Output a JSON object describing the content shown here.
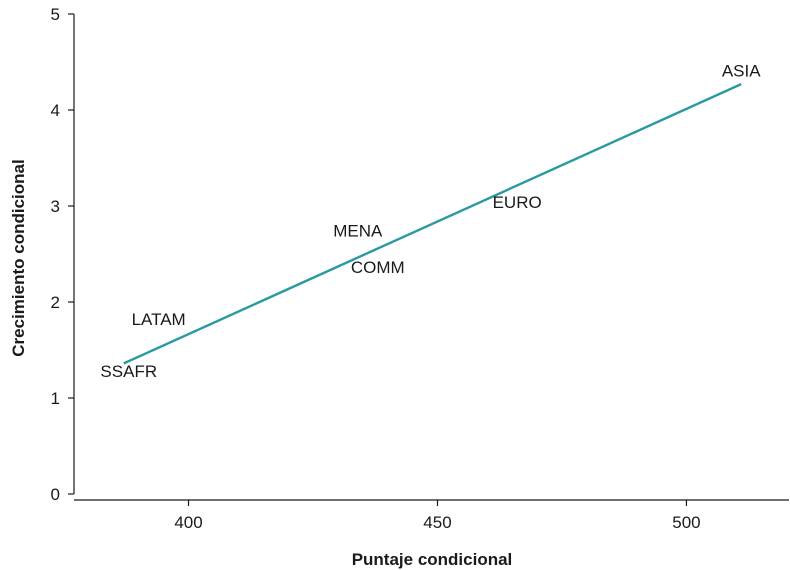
{
  "chart_data": {
    "type": "line",
    "xlabel": "Puntaje condicional",
    "ylabel": "Crecimiento condicional",
    "xlim": [
      377,
      521
    ],
    "ylim": [
      0,
      5
    ],
    "xticks": [
      400,
      450,
      500
    ],
    "yticks": [
      0,
      1,
      2,
      3,
      4,
      5
    ],
    "grid": false,
    "legend": "none",
    "series": [
      {
        "values": [
          {
            "x": 387,
            "y": 1.36
          },
          {
            "x": 511,
            "y": 4.27
          }
        ],
        "color": "#2a9aa0"
      }
    ],
    "annotations": [
      {
        "text": "SSAFR",
        "x": 388,
        "y": 1.22
      },
      {
        "text": "LATAM",
        "x": 394,
        "y": 1.76
      },
      {
        "text": "MENA",
        "x": 434,
        "y": 2.68
      },
      {
        "text": "COMM",
        "x": 438,
        "y": 2.3
      },
      {
        "text": "EURO",
        "x": 466,
        "y": 2.98
      },
      {
        "text": "ASIA",
        "x": 511,
        "y": 4.35
      }
    ]
  }
}
